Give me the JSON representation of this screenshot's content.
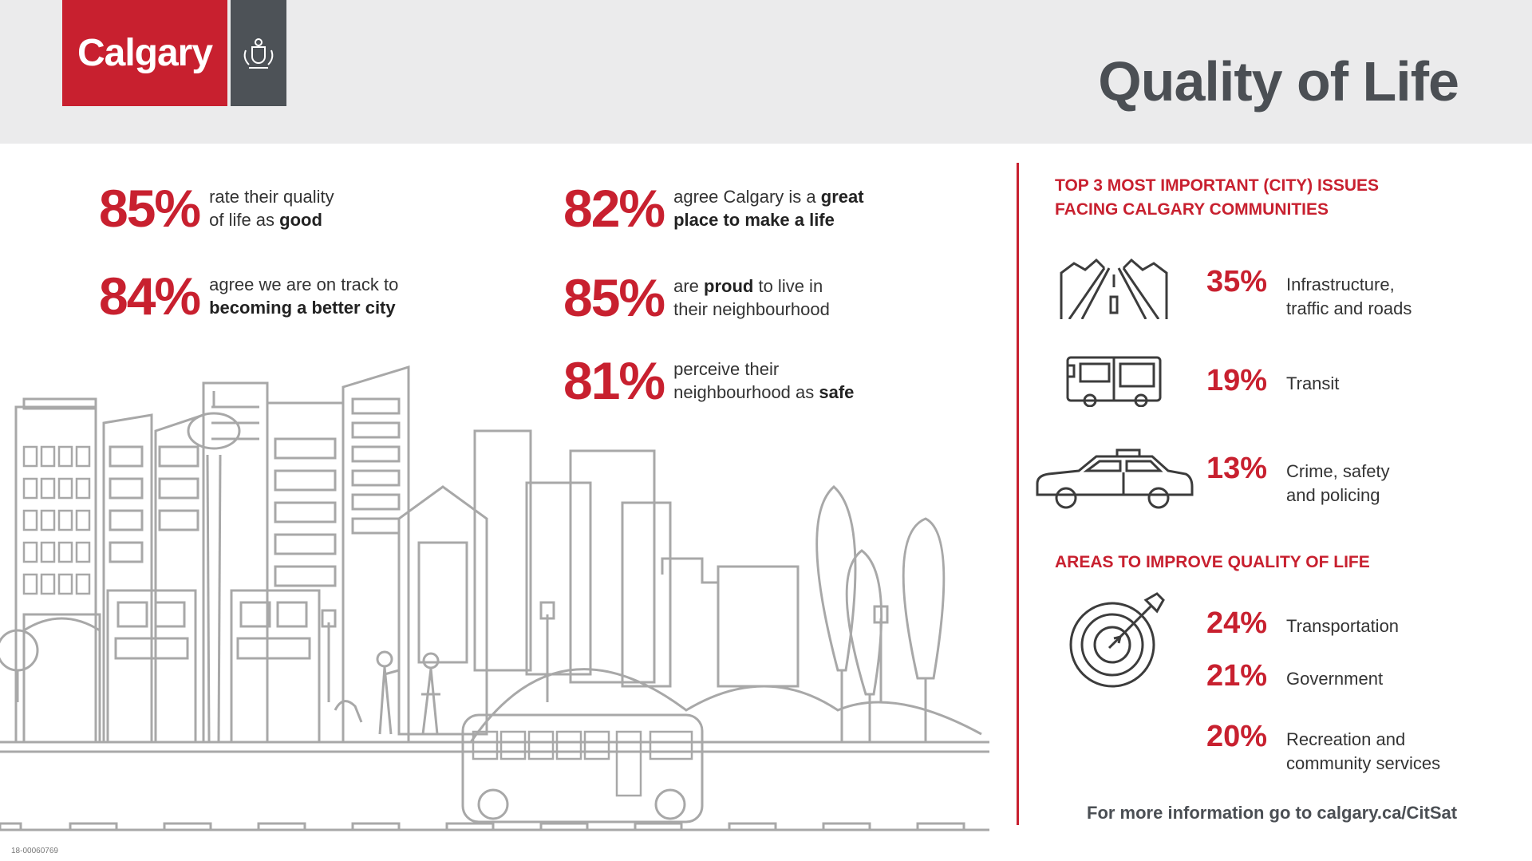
{
  "header": {
    "logo_text": "Calgary",
    "title": "Quality of Life"
  },
  "stats": [
    {
      "pct": "85%",
      "line1": [
        "rate their quality"
      ],
      "line2": [
        "of life as ",
        "good"
      ]
    },
    {
      "pct": "84%",
      "line1": [
        "agree we are on track to"
      ],
      "line2": [
        "",
        "becoming a better city"
      ]
    },
    {
      "pct": "82%",
      "line1": [
        "agree Calgary is a ",
        "great"
      ],
      "line2": [
        "",
        "place to make a life"
      ]
    },
    {
      "pct": "85%",
      "line1": [
        "are ",
        "proud",
        " to live in"
      ],
      "line2": [
        "their neighbourhood"
      ]
    },
    {
      "pct": "81%",
      "line1": [
        "perceive their"
      ],
      "line2": [
        "neighbourhood as ",
        "safe"
      ]
    }
  ],
  "issues": {
    "heading_line1": "TOP 3 MOST IMPORTANT (CITY) ISSUES",
    "heading_line2": "FACING CALGARY COMMUNITIES",
    "items": [
      {
        "pct": "35%",
        "line1": "Infrastructure,",
        "line2": "traffic and roads",
        "icon": "road-icon"
      },
      {
        "pct": "19%",
        "line1": "Transit",
        "line2": "",
        "icon": "bus-icon"
      },
      {
        "pct": "13%",
        "line1": "Crime, safety",
        "line2": "and policing",
        "icon": "police-car-icon"
      }
    ]
  },
  "improve": {
    "heading": "AREAS TO IMPROVE QUALITY OF LIFE",
    "icon": "target-icon",
    "items": [
      {
        "pct": "24%",
        "line1": "Transportation",
        "line2": ""
      },
      {
        "pct": "21%",
        "line1": "Government",
        "line2": ""
      },
      {
        "pct": "20%",
        "line1": "Recreation and",
        "line2": "community services"
      }
    ]
  },
  "footer": "For more information go to calgary.ca/CitSat",
  "code": "18-00060769",
  "colors": {
    "accent": "#c8202f",
    "dark": "#4b4f54",
    "illustration": "#a8a8a8"
  }
}
